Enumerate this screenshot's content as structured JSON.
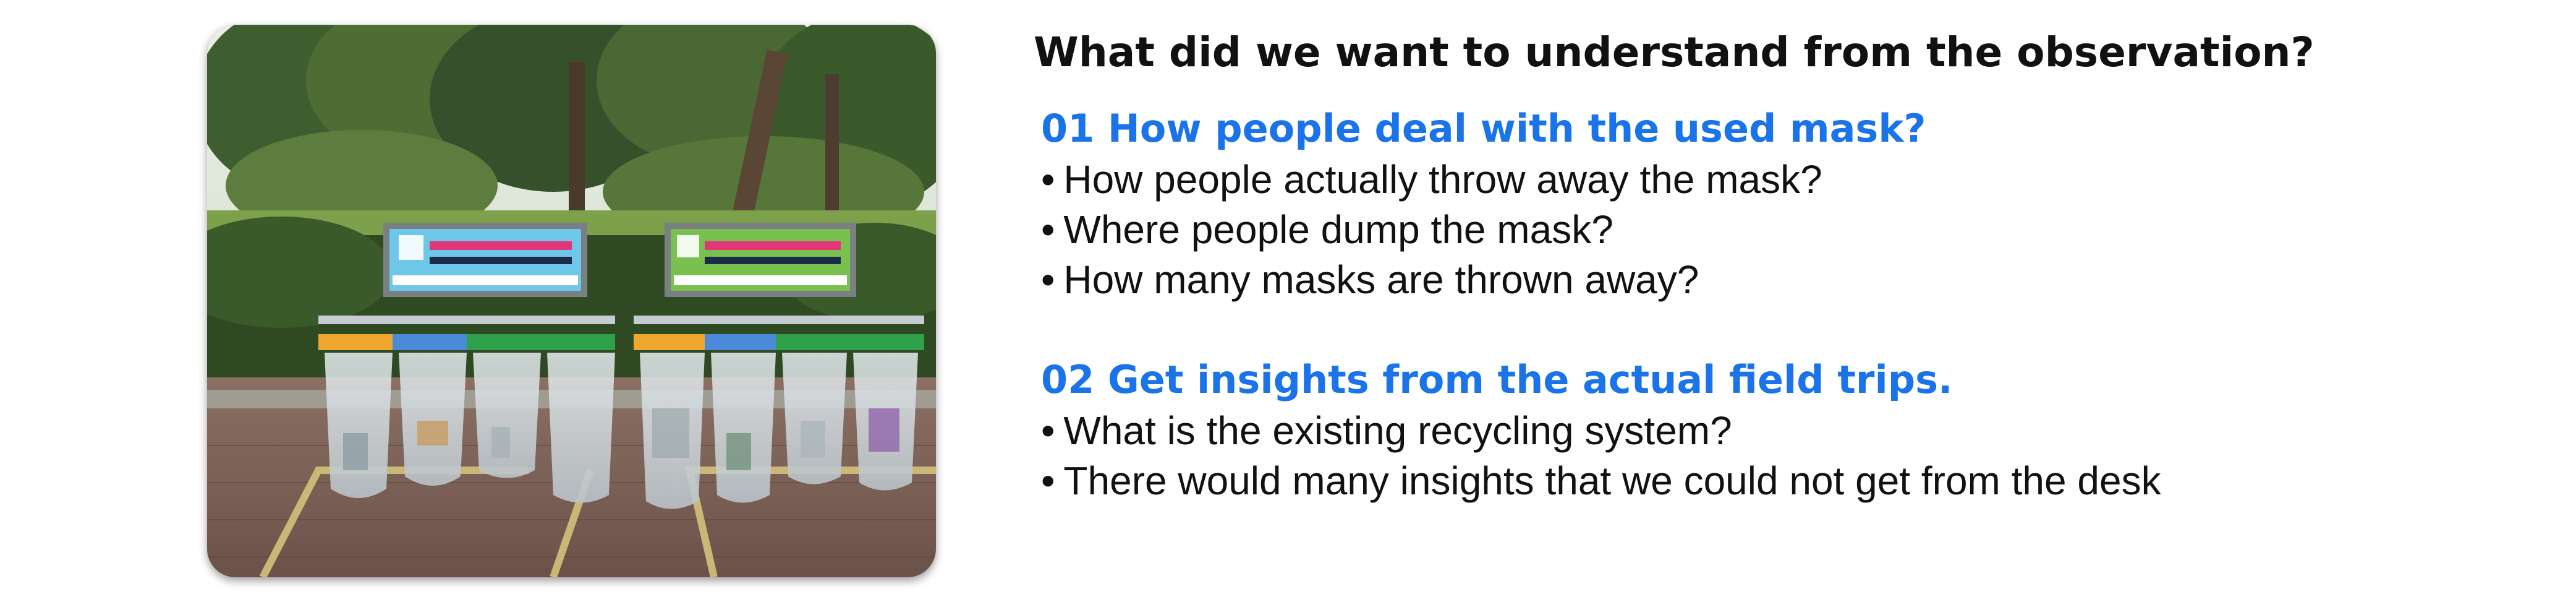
{
  "heading": "What did we want to understand from the observation?",
  "colors": {
    "accent": "#1a73e8",
    "text": "#111111"
  },
  "photo": {
    "alt": "Outdoor recycling bins with clear plastic bags under park trees"
  },
  "sections": [
    {
      "title": "01 How people deal with the used mask?",
      "bullets": [
        "How people actually throw away the mask?",
        "Where people dump the mask?",
        "How many masks are thrown away?"
      ]
    },
    {
      "title": "02 Get insights from the actual field trips.",
      "bullets": [
        "What is the existing recycling system?",
        "There would many insights that we could not get from the desk"
      ]
    }
  ],
  "bullet_glyph": "•"
}
